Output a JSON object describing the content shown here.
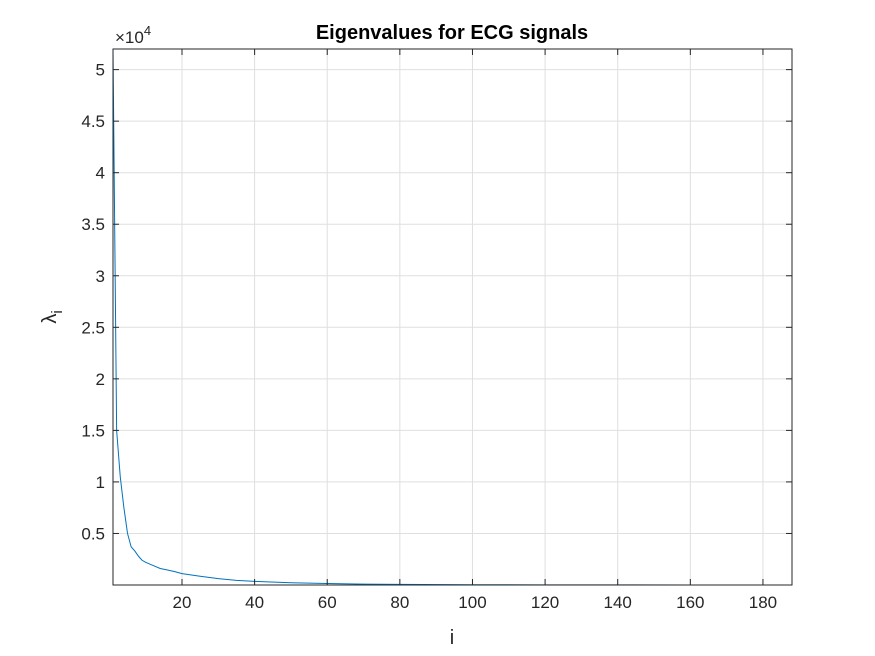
{
  "chart_data": {
    "type": "line",
    "title": "Eigenvalues for ECG signals",
    "xlabel": "i",
    "ylabel": "λ",
    "ylabel_subscript": "i",
    "y_exponent_prefix": "×10",
    "y_exponent": "4",
    "xlim": [
      1,
      188
    ],
    "ylim": [
      0,
      52000
    ],
    "x_ticks": [
      20,
      40,
      60,
      80,
      100,
      120,
      140,
      160,
      180
    ],
    "y_ticks": [
      5000,
      10000,
      15000,
      20000,
      25000,
      30000,
      35000,
      40000,
      45000,
      50000
    ],
    "y_tick_labels": [
      "0.5",
      "1",
      "1.5",
      "2",
      "2.5",
      "3",
      "3.5",
      "4",
      "4.5",
      "5"
    ],
    "grid": true,
    "series": [
      {
        "color": "#0072bd",
        "x": [
          1,
          2,
          3,
          4,
          5,
          6,
          7,
          8,
          9,
          10,
          12,
          14,
          16,
          18,
          20,
          25,
          30,
          35,
          40,
          50,
          60,
          70,
          80,
          100,
          120,
          140,
          160,
          188
        ],
        "values": [
          52000,
          15000,
          10500,
          7500,
          5000,
          3700,
          3300,
          2800,
          2400,
          2200,
          1900,
          1600,
          1450,
          1300,
          1100,
          850,
          620,
          450,
          350,
          220,
          140,
          90,
          60,
          30,
          15,
          8,
          4,
          1
        ]
      }
    ]
  }
}
